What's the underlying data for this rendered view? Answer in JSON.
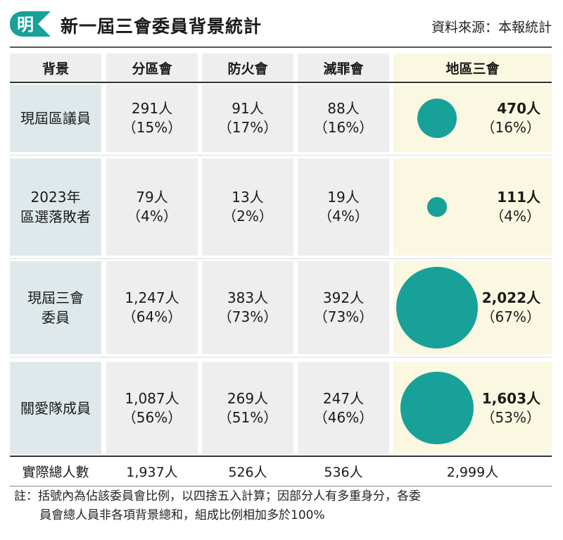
{
  "header": {
    "logo_char": "明",
    "title": "新一屆三會委員背景統計",
    "source": "資料來源：本報統計"
  },
  "colors": {
    "accent": "#17a199",
    "label_bg": "#dfe9ec",
    "cell_bg": "#eeeeee",
    "highlight_bg": "#fbf8e1"
  },
  "chart_data": {
    "type": "table",
    "columns": [
      "背景",
      "分區會",
      "防火會",
      "滅罪會",
      "地區三會"
    ],
    "rows": [
      {
        "label": [
          "現屆區議員"
        ],
        "cells": [
          {
            "count": "291人",
            "pct": "（15%）"
          },
          {
            "count": "91人",
            "pct": "（17%）"
          },
          {
            "count": "88人",
            "pct": "（16%）"
          }
        ],
        "summary": {
          "count": "470人",
          "pct": "（16%）",
          "value": 470
        }
      },
      {
        "label": [
          "2023年",
          "區選落敗者"
        ],
        "cells": [
          {
            "count": "79人",
            "pct": "（4%）"
          },
          {
            "count": "13人",
            "pct": "（2%）"
          },
          {
            "count": "19人",
            "pct": "（4%）"
          }
        ],
        "summary": {
          "count": "111人",
          "pct": "（4%）",
          "value": 111
        }
      },
      {
        "label": [
          "現屆三會",
          "委員"
        ],
        "cells": [
          {
            "count": "1,247人",
            "pct": "（64%）"
          },
          {
            "count": "383人",
            "pct": "（73%）"
          },
          {
            "count": "392人",
            "pct": "（73%）"
          }
        ],
        "summary": {
          "count": "2,022人",
          "pct": "（67%）",
          "value": 2022
        }
      },
      {
        "label": [
          "關愛隊成員"
        ],
        "cells": [
          {
            "count": "1,087人",
            "pct": "（56%）"
          },
          {
            "count": "269人",
            "pct": "（51%）"
          },
          {
            "count": "247人",
            "pct": "（46%）"
          }
        ],
        "summary": {
          "count": "1,603人",
          "pct": "（53%）",
          "value": 1603
        }
      }
    ],
    "totals": {
      "label": "實際總人數",
      "values": [
        "1,937人",
        "526人",
        "536人",
        "2,999人"
      ]
    }
  },
  "note": {
    "line1": "註：括號內為佔該委員會比例，以四捨五入計算；因部分人有多重身分，各委",
    "line2": "員會總人員非各項背景總和，組成比例相加多於100%"
  }
}
